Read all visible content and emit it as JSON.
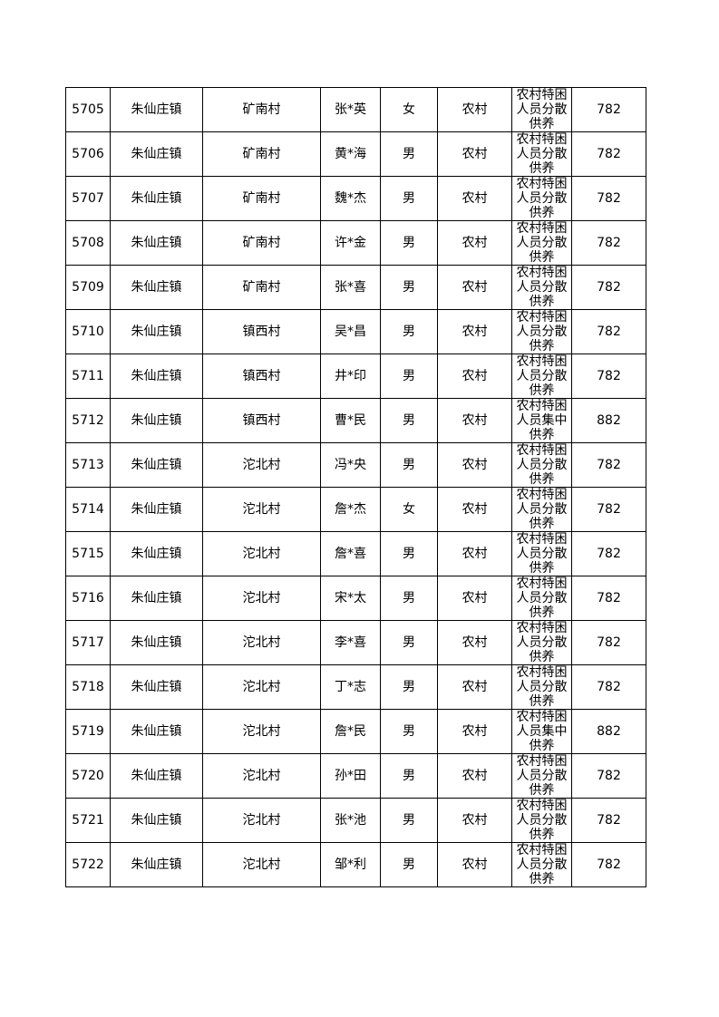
{
  "table": {
    "rows": [
      [
        "5705",
        "朱仙庄镇",
        "矿南村",
        "张*英",
        "女",
        "农村",
        "农村特困人员分散供养",
        782
      ],
      [
        "5706",
        "朱仙庄镇",
        "矿南村",
        "黄*海",
        "男",
        "农村",
        "农村特困人员分散供养",
        782
      ],
      [
        "5707",
        "朱仙庄镇",
        "矿南村",
        "魏*杰",
        "男",
        "农村",
        "农村特困人员分散供养",
        782
      ],
      [
        "5708",
        "朱仙庄镇",
        "矿南村",
        "许*金",
        "男",
        "农村",
        "农村特困人员分散供养",
        782
      ],
      [
        "5709",
        "朱仙庄镇",
        "矿南村",
        "张*喜",
        "男",
        "农村",
        "农村特困人员分散供养",
        782
      ],
      [
        "5710",
        "朱仙庄镇",
        "镇西村",
        "吴*昌",
        "男",
        "农村",
        "农村特困人员分散供养",
        782
      ],
      [
        "5711",
        "朱仙庄镇",
        "镇西村",
        "井*印",
        "男",
        "农村",
        "农村特困人员分散供养",
        782
      ],
      [
        "5712",
        "朱仙庄镇",
        "镇西村",
        "曹*民",
        "男",
        "农村",
        "农村特困人员集中供养",
        882
      ],
      [
        "5713",
        "朱仙庄镇",
        "沱北村",
        "冯*央",
        "男",
        "农村",
        "农村特困人员分散供养",
        782
      ],
      [
        "5714",
        "朱仙庄镇",
        "沱北村",
        "詹*杰",
        "女",
        "农村",
        "农村特困人员分散供养",
        782
      ],
      [
        "5715",
        "朱仙庄镇",
        "沱北村",
        "詹*喜",
        "男",
        "农村",
        "农村特困人员分散供养",
        782
      ],
      [
        "5716",
        "朱仙庄镇",
        "沱北村",
        "宋*太",
        "男",
        "农村",
        "农村特困人员分散供养",
        782
      ],
      [
        "5717",
        "朱仙庄镇",
        "沱北村",
        "李*喜",
        "男",
        "农村",
        "农村特困人员分散供养",
        782
      ],
      [
        "5718",
        "朱仙庄镇",
        "沱北村",
        "丁*志",
        "男",
        "农村",
        "农村特困人员分散供养",
        782
      ],
      [
        "5719",
        "朱仙庄镇",
        "沱北村",
        "詹*民",
        "男",
        "农村",
        "农村特困人员集中供养",
        882
      ],
      [
        "5720",
        "朱仙庄镇",
        "沱北村",
        "孙*田",
        "男",
        "农村",
        "农村特困人员分散供养",
        782
      ],
      [
        "5721",
        "朱仙庄镇",
        "沱北村",
        "张*池",
        "男",
        "农村",
        "农村特困人员分散供养",
        782
      ],
      [
        "5722",
        "朱仙庄镇",
        "沱北村",
        "邹*利",
        "男",
        "农村",
        "农村特困人员分散供养",
        782
      ]
    ]
  }
}
